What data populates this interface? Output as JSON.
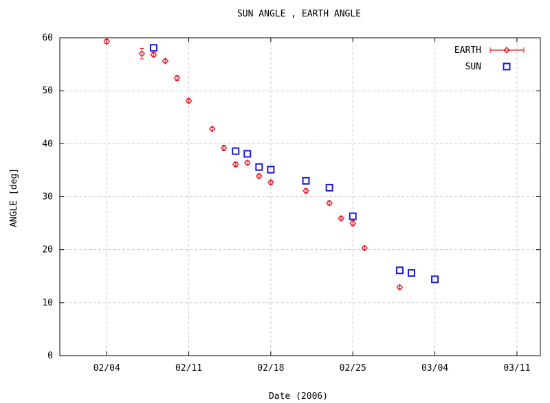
{
  "chart_data": {
    "type": "scatter",
    "title": "SUN ANGLE , EARTH ANGLE",
    "xlabel": "Date (2006)",
    "ylabel": "ANGLE [deg]",
    "xlim": [
      "2006-01-31",
      "2006-03-13"
    ],
    "ylim": [
      0,
      60
    ],
    "x_ticks": [
      "02/04",
      "02/11",
      "02/18",
      "02/25",
      "03/04",
      "03/11"
    ],
    "x_tick_dates": [
      "2006-02-04",
      "2006-02-11",
      "2006-02-18",
      "2006-02-25",
      "2006-03-04",
      "2006-03-11"
    ],
    "y_ticks": [
      0,
      10,
      20,
      30,
      40,
      50,
      60
    ],
    "grid": true,
    "legend_position": "top-right",
    "series": [
      {
        "name": "EARTH",
        "color": "#e8141e",
        "marker": "diamond-with-error-bars",
        "points": [
          {
            "x": "2006-02-04",
            "y": 59.3,
            "err": 0.4
          },
          {
            "x": "2006-02-07",
            "y": 57.0,
            "err": 1.0
          },
          {
            "x": "2006-02-08",
            "y": 56.8,
            "err": 0.4
          },
          {
            "x": "2006-02-09",
            "y": 55.6,
            "err": 0.3
          },
          {
            "x": "2006-02-10",
            "y": 52.4,
            "err": 0.5
          },
          {
            "x": "2006-02-11",
            "y": 48.1,
            "err": 0.4
          },
          {
            "x": "2006-02-13",
            "y": 42.8,
            "err": 0.3
          },
          {
            "x": "2006-02-14",
            "y": 39.2,
            "err": 0.5
          },
          {
            "x": "2006-02-15",
            "y": 36.1,
            "err": 0.4
          },
          {
            "x": "2006-02-16",
            "y": 36.4,
            "err": 0.4
          },
          {
            "x": "2006-02-17",
            "y": 33.9,
            "err": 0.4
          },
          {
            "x": "2006-02-18",
            "y": 32.7,
            "err": 0.4
          },
          {
            "x": "2006-02-21",
            "y": 31.1,
            "err": 0.4
          },
          {
            "x": "2006-02-23",
            "y": 28.8,
            "err": 0.4
          },
          {
            "x": "2006-02-24",
            "y": 25.9,
            "err": 0.3
          },
          {
            "x": "2006-02-25",
            "y": 25.0,
            "err": 0.5
          },
          {
            "x": "2006-02-26",
            "y": 20.3,
            "err": 0.3
          },
          {
            "x": "2006-03-01",
            "y": 12.9,
            "err": 0.3
          }
        ]
      },
      {
        "name": "SUN",
        "color": "#1a1ad6",
        "marker": "square",
        "points": [
          {
            "x": "2006-02-08",
            "y": 58.1
          },
          {
            "x": "2006-02-15",
            "y": 38.6
          },
          {
            "x": "2006-02-16",
            "y": 38.1
          },
          {
            "x": "2006-02-17",
            "y": 35.6
          },
          {
            "x": "2006-02-18",
            "y": 35.1
          },
          {
            "x": "2006-02-21",
            "y": 33.0
          },
          {
            "x": "2006-02-23",
            "y": 31.7
          },
          {
            "x": "2006-02-25",
            "y": 26.3
          },
          {
            "x": "2006-03-01",
            "y": 16.1
          },
          {
            "x": "2006-03-02",
            "y": 15.6
          },
          {
            "x": "2006-03-04",
            "y": 14.4
          }
        ]
      }
    ]
  }
}
